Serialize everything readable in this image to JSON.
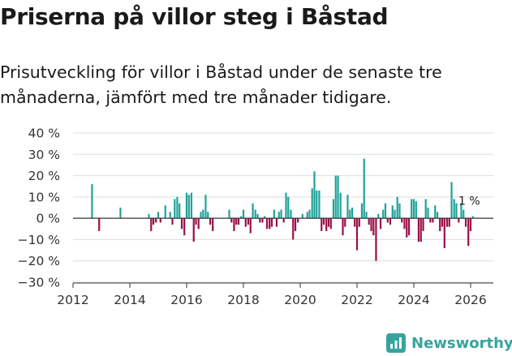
{
  "header": {
    "title": "Priserna på villor steg i Båstad",
    "subtitle": "Prisutveckling för villor i Båstad under de senaste tre månaderna, jämfört med tre månader tidigare."
  },
  "brand": {
    "name": "Newsworthy",
    "color": "#37a39f"
  },
  "chart_data": {
    "type": "bar",
    "xlabel": "",
    "ylabel": "",
    "xlim": [
      2012,
      2026.8
    ],
    "ylim": [
      -30,
      40
    ],
    "x_ticks": [
      2012,
      2014,
      2016,
      2018,
      2020,
      2022,
      2024,
      2026
    ],
    "y_ticks": [
      -30,
      -20,
      -10,
      0,
      10,
      20,
      30,
      40
    ],
    "y_tick_labels": [
      "−30 %",
      "−20 %",
      "−10 %",
      "0 %",
      "10 %",
      "20 %",
      "30 %",
      "40 %"
    ],
    "grid": "horizontal",
    "colors": {
      "positive": "#1fa29a",
      "negative": "#9c0f4a",
      "axis": "#333333",
      "grid": "#dddddd"
    },
    "annotation": {
      "text": "1 %",
      "x": 2026.0,
      "y": 1
    },
    "points": [
      [
        2012.67,
        16
      ],
      [
        2012.92,
        -6
      ],
      [
        2013.67,
        5
      ],
      [
        2014.67,
        2
      ],
      [
        2014.75,
        -6
      ],
      [
        2014.83,
        -3
      ],
      [
        2014.92,
        -2
      ],
      [
        2015.0,
        3
      ],
      [
        2015.08,
        -2
      ],
      [
        2015.25,
        6
      ],
      [
        2015.42,
        3
      ],
      [
        2015.5,
        -3
      ],
      [
        2015.58,
        9
      ],
      [
        2015.67,
        10
      ],
      [
        2015.75,
        7
      ],
      [
        2015.83,
        -5
      ],
      [
        2015.92,
        -8
      ],
      [
        2016.0,
        12
      ],
      [
        2016.08,
        11
      ],
      [
        2016.17,
        12
      ],
      [
        2016.25,
        -11
      ],
      [
        2016.33,
        -3
      ],
      [
        2016.42,
        -5
      ],
      [
        2016.5,
        3
      ],
      [
        2016.58,
        4
      ],
      [
        2016.67,
        11
      ],
      [
        2016.75,
        3
      ],
      [
        2016.83,
        -3
      ],
      [
        2016.92,
        -6
      ],
      [
        2017.5,
        4
      ],
      [
        2017.58,
        -2
      ],
      [
        2017.67,
        -6
      ],
      [
        2017.75,
        -3
      ],
      [
        2017.83,
        -3
      ],
      [
        2017.92,
        1
      ],
      [
        2018.0,
        4
      ],
      [
        2018.08,
        -4
      ],
      [
        2018.17,
        -3
      ],
      [
        2018.25,
        -7
      ],
      [
        2018.33,
        7
      ],
      [
        2018.42,
        4
      ],
      [
        2018.5,
        2
      ],
      [
        2018.58,
        -2
      ],
      [
        2018.67,
        -2
      ],
      [
        2018.75,
        1
      ],
      [
        2018.83,
        -5
      ],
      [
        2018.92,
        -5
      ],
      [
        2019.0,
        -4
      ],
      [
        2019.08,
        4
      ],
      [
        2019.17,
        -4
      ],
      [
        2019.25,
        3
      ],
      [
        2019.33,
        4
      ],
      [
        2019.42,
        -2
      ],
      [
        2019.5,
        12
      ],
      [
        2019.58,
        10
      ],
      [
        2019.67,
        4
      ],
      [
        2019.75,
        -10
      ],
      [
        2019.83,
        -6
      ],
      [
        2019.92,
        -2
      ],
      [
        2020.08,
        2
      ],
      [
        2020.25,
        3
      ],
      [
        2020.33,
        4
      ],
      [
        2020.42,
        14
      ],
      [
        2020.5,
        22
      ],
      [
        2020.58,
        13
      ],
      [
        2020.67,
        13
      ],
      [
        2020.75,
        -6
      ],
      [
        2020.83,
        -3
      ],
      [
        2020.92,
        -6
      ],
      [
        2021.0,
        -4
      ],
      [
        2021.08,
        -5
      ],
      [
        2021.17,
        9
      ],
      [
        2021.25,
        20
      ],
      [
        2021.33,
        20
      ],
      [
        2021.42,
        12
      ],
      [
        2021.5,
        -8
      ],
      [
        2021.58,
        -4
      ],
      [
        2021.67,
        11
      ],
      [
        2021.75,
        4
      ],
      [
        2021.83,
        5
      ],
      [
        2021.92,
        -4
      ],
      [
        2022.0,
        -15
      ],
      [
        2022.08,
        -4
      ],
      [
        2022.17,
        7
      ],
      [
        2022.25,
        28
      ],
      [
        2022.33,
        3
      ],
      [
        2022.42,
        -3
      ],
      [
        2022.5,
        -6
      ],
      [
        2022.58,
        -8
      ],
      [
        2022.67,
        -20
      ],
      [
        2022.75,
        2
      ],
      [
        2022.83,
        -5
      ],
      [
        2022.92,
        4
      ],
      [
        2023.0,
        7
      ],
      [
        2023.08,
        -2
      ],
      [
        2023.17,
        -3
      ],
      [
        2023.25,
        6
      ],
      [
        2023.33,
        4
      ],
      [
        2023.42,
        10
      ],
      [
        2023.5,
        7
      ],
      [
        2023.58,
        -2
      ],
      [
        2023.67,
        -5
      ],
      [
        2023.75,
        -9
      ],
      [
        2023.83,
        -8
      ],
      [
        2023.92,
        9
      ],
      [
        2024.0,
        9
      ],
      [
        2024.08,
        8
      ],
      [
        2024.17,
        -11
      ],
      [
        2024.25,
        -11
      ],
      [
        2024.33,
        -6
      ],
      [
        2024.42,
        9
      ],
      [
        2024.5,
        5
      ],
      [
        2024.58,
        -2
      ],
      [
        2024.67,
        -2
      ],
      [
        2024.75,
        6
      ],
      [
        2024.83,
        3
      ],
      [
        2024.92,
        -6
      ],
      [
        2025.0,
        -4
      ],
      [
        2025.08,
        -14
      ],
      [
        2025.17,
        -4
      ],
      [
        2025.25,
        -4
      ],
      [
        2025.33,
        17
      ],
      [
        2025.42,
        9
      ],
      [
        2025.5,
        7
      ],
      [
        2025.58,
        -2
      ],
      [
        2025.67,
        7
      ],
      [
        2025.75,
        4
      ],
      [
        2025.83,
        -4
      ],
      [
        2025.92,
        -13
      ],
      [
        2026.0,
        -6
      ],
      [
        2026.08,
        1
      ]
    ]
  }
}
